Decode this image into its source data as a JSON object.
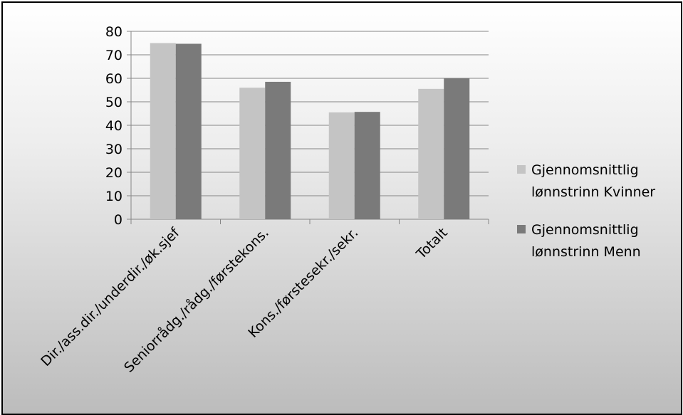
{
  "chart_data": {
    "type": "bar",
    "categories": [
      "Dir./ass.dir./underdir./øk.sjef",
      "Seniorrådg./rådg./førstekons.",
      "Kons./førstesekr./sekr.",
      "Totalt"
    ],
    "series": [
      {
        "name": "Gjennomsnittlig lønnstrinn Kvinner",
        "legend_lines": [
          "Gjennomsnittlig",
          "lønnstrinn Kvinner"
        ],
        "values": [
          75,
          56,
          45.5,
          55.5
        ],
        "color": "#c4c4c4"
      },
      {
        "name": "Gjennomsnittlig lønnstrinn Menn",
        "legend_lines": [
          "Gjennomsnittlig",
          "lønnstrinn Menn"
        ],
        "values": [
          74.7,
          58.5,
          45.7,
          60
        ],
        "color": "#7a7a7a"
      }
    ],
    "ylim": [
      0,
      80
    ],
    "yticks": [
      "0",
      "10",
      "20",
      "30",
      "40",
      "50",
      "60",
      "70",
      "80"
    ],
    "grid": true,
    "legend_position": "right",
    "gridline_color": "#868686",
    "axis_color": "#868686"
  }
}
